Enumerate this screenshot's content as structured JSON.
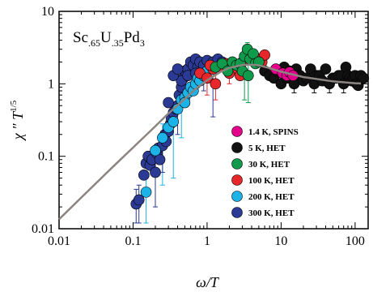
{
  "chart_data": {
    "type": "scatter",
    "xscale": "log",
    "yscale": "log",
    "xlim": [
      0.01,
      150
    ],
    "ylim": [
      0.01,
      10
    ],
    "xticks": [
      0.01,
      0.1,
      1,
      10,
      100
    ],
    "yticks": [
      0.01,
      0.1,
      1,
      10
    ],
    "xtick_labels": [
      "0.01",
      "0.1",
      "1",
      "10",
      "100"
    ],
    "ytick_labels": [
      "0.01",
      "0.1",
      "1",
      "10"
    ],
    "xlabel": "ω/T",
    "ylabel": "χ ″ T",
    "ylabel_exponent": "1/5",
    "annotation": {
      "parts": [
        {
          "text": "Sc",
          "sub": false
        },
        {
          "text": ".65",
          "sub": true
        },
        {
          "text": "U",
          "sub": false
        },
        {
          "text": ".35",
          "sub": true
        },
        {
          "text": "Pd",
          "sub": false
        },
        {
          "text": "3",
          "sub": true
        }
      ]
    },
    "legend_position": "lower-right",
    "series": [
      {
        "name": "1.4 K, SPINS",
        "color": "#e5008c",
        "points": [
          [
            8.5,
            1.6
          ],
          [
            10.5,
            1.4
          ],
          [
            12,
            1.3
          ],
          [
            13,
            1.45
          ],
          [
            14.5,
            1.3
          ]
        ]
      },
      {
        "name": "5 K, HET",
        "color": "#111111",
        "points": [
          [
            6,
            1.5
          ],
          [
            7,
            1.3
          ],
          [
            8,
            1.2
          ],
          [
            9,
            1.5
          ],
          [
            10,
            1.0
          ],
          [
            11,
            1.7
          ],
          [
            12,
            1.2
          ],
          [
            13,
            1.5
          ],
          [
            15,
            1.0
          ],
          [
            16,
            1.6
          ],
          [
            18,
            1.3
          ],
          [
            20,
            1.1
          ],
          [
            22,
            1.2
          ],
          [
            25,
            1.6
          ],
          [
            28,
            1.0
          ],
          [
            30,
            1.3
          ],
          [
            33,
            1.3
          ],
          [
            36,
            1.1
          ],
          [
            40,
            1.6
          ],
          [
            45,
            1.0
          ],
          [
            50,
            1.2
          ],
          [
            55,
            1.2
          ],
          [
            60,
            1.3
          ],
          [
            65,
            1.3
          ],
          [
            70,
            1.0
          ],
          [
            75,
            1.7
          ],
          [
            80,
            1.3
          ],
          [
            85,
            1.2
          ],
          [
            90,
            1.1
          ],
          [
            95,
            1.2
          ],
          [
            100,
            1.3
          ],
          [
            105,
            1.0
          ],
          [
            110,
            0.95
          ],
          [
            120,
            1.3
          ],
          [
            130,
            1.2
          ]
        ],
        "error_bars": [
          [
            15,
            1.0,
            0.75,
            1.25
          ],
          [
            28,
            1.0,
            0.75,
            1.25
          ],
          [
            45,
            1.0,
            0.75,
            1.25
          ],
          [
            70,
            1.0,
            0.75,
            1.25
          ]
        ]
      },
      {
        "name": "30 K, HET",
        "color": "#109a4b",
        "points": [
          [
            1.3,
            1.7
          ],
          [
            1.6,
            1.9
          ],
          [
            1.9,
            1.5
          ],
          [
            2.2,
            2.0
          ],
          [
            2.5,
            1.8
          ],
          [
            2.8,
            1.9
          ],
          [
            3.2,
            2.4
          ],
          [
            3.5,
            3.0
          ],
          [
            3.8,
            2.2
          ],
          [
            4.2,
            2.6
          ],
          [
            4.5,
            1.9
          ],
          [
            5,
            2.0
          ],
          [
            3.0,
            1.5
          ],
          [
            3.6,
            1.3
          ]
        ],
        "error_bars": [
          [
            3.2,
            1.2,
            0.6,
            1.8
          ],
          [
            3.6,
            1.3,
            0.55,
            2.0
          ],
          [
            3.5,
            3.0,
            2.4,
            3.7
          ]
        ]
      },
      {
        "name": "100 K, HET",
        "color": "#e8272b",
        "points": [
          [
            0.8,
            1.4
          ],
          [
            1.0,
            1.2
          ],
          [
            1.2,
            1.6
          ],
          [
            1.3,
            1.0
          ],
          [
            1.5,
            1.7
          ],
          [
            1.8,
            1.9
          ],
          [
            2.0,
            1.4
          ],
          [
            2.3,
            1.8
          ],
          [
            2.6,
            1.6
          ],
          [
            3.0,
            2.0
          ],
          [
            4.5,
            2.3
          ],
          [
            5.5,
            2.0
          ],
          [
            6,
            2.5
          ],
          [
            1.1,
            1.8
          ],
          [
            2.8,
            1.3
          ]
        ],
        "error_bars": [
          [
            1.0,
            1.2,
            0.7,
            1.7
          ],
          [
            1.3,
            1.0,
            0.6,
            1.5
          ],
          [
            2.0,
            1.4,
            1.0,
            1.9
          ]
        ]
      },
      {
        "name": "200 K, HET",
        "color": "#1cb3e8",
        "points": [
          [
            0.15,
            0.032
          ],
          [
            0.2,
            0.12
          ],
          [
            0.25,
            0.18
          ],
          [
            0.3,
            0.25
          ],
          [
            0.35,
            0.3
          ],
          [
            0.4,
            0.45
          ],
          [
            0.45,
            0.6
          ],
          [
            0.5,
            0.65
          ],
          [
            0.55,
            0.75
          ],
          [
            0.6,
            0.9
          ],
          [
            0.65,
            0.8
          ],
          [
            0.7,
            1.0
          ],
          [
            0.75,
            1.2
          ],
          [
            0.5,
            0.55
          ],
          [
            0.8,
            1.1
          ],
          [
            0.9,
            1.3
          ],
          [
            1.0,
            1.5
          ]
        ],
        "error_bars": [
          [
            0.15,
            0.032,
            0.012,
            0.05
          ],
          [
            0.25,
            0.18,
            0.04,
            0.28
          ],
          [
            0.35,
            0.3,
            0.05,
            0.45
          ],
          [
            0.45,
            0.6,
            0.18,
            0.8
          ]
        ]
      },
      {
        "name": "300 K, HET",
        "color": "#2b3a94",
        "points": [
          [
            0.11,
            0.022
          ],
          [
            0.12,
            0.025
          ],
          [
            0.14,
            0.055
          ],
          [
            0.15,
            0.08
          ],
          [
            0.16,
            0.1
          ],
          [
            0.17,
            0.075
          ],
          [
            0.18,
            0.09
          ],
          [
            0.2,
            0.06
          ],
          [
            0.21,
            0.11
          ],
          [
            0.22,
            0.13
          ],
          [
            0.23,
            0.09
          ],
          [
            0.25,
            0.14
          ],
          [
            0.27,
            0.2
          ],
          [
            0.28,
            0.16
          ],
          [
            0.3,
            0.22
          ],
          [
            0.32,
            0.28
          ],
          [
            0.33,
            0.33
          ],
          [
            0.35,
            0.4
          ],
          [
            0.38,
            0.45
          ],
          [
            0.4,
            0.5
          ],
          [
            0.42,
            0.7
          ],
          [
            0.45,
            0.9
          ],
          [
            0.48,
            1.2
          ],
          [
            0.5,
            1.5
          ],
          [
            0.55,
            1.6
          ],
          [
            0.6,
            2.0
          ],
          [
            0.65,
            1.8
          ],
          [
            0.7,
            2.2
          ],
          [
            0.75,
            1.7
          ],
          [
            0.8,
            2.0
          ],
          [
            0.9,
            1.8
          ],
          [
            1.0,
            2.1
          ],
          [
            1.1,
            1.7
          ],
          [
            1.2,
            2.0
          ],
          [
            1.4,
            2.2
          ],
          [
            1.6,
            2.0
          ],
          [
            1.8,
            1.8
          ],
          [
            0.45,
            1.1
          ],
          [
            0.35,
            1.3
          ],
          [
            0.3,
            0.55
          ],
          [
            0.4,
            1.6
          ],
          [
            0.55,
            1.3
          ],
          [
            0.7,
            1.4
          ]
        ],
        "error_bars": [
          [
            0.11,
            0.022,
            0.012,
            0.035
          ],
          [
            0.12,
            0.025,
            0.012,
            0.04
          ],
          [
            0.2,
            0.06,
            0.02,
            0.1
          ],
          [
            0.25,
            0.14,
            0.06,
            0.22
          ],
          [
            0.4,
            0.5,
            0.2,
            0.75
          ],
          [
            1.2,
            2.0,
            0.35,
            2.3
          ],
          [
            0.9,
            1.8,
            0.8,
            2.1
          ]
        ]
      }
    ],
    "fit_curve": {
      "color": "#8c8480",
      "points": [
        [
          0.01,
          0.0135
        ],
        [
          0.02,
          0.027
        ],
        [
          0.05,
          0.067
        ],
        [
          0.1,
          0.132
        ],
        [
          0.2,
          0.26
        ],
        [
          0.3,
          0.39
        ],
        [
          0.5,
          0.62
        ],
        [
          0.7,
          0.85
        ],
        [
          1.0,
          1.12
        ],
        [
          1.5,
          1.45
        ],
        [
          2.0,
          1.66
        ],
        [
          3.0,
          1.82
        ],
        [
          4.0,
          1.84
        ],
        [
          5.0,
          1.8
        ],
        [
          7.0,
          1.65
        ],
        [
          10.0,
          1.47
        ],
        [
          20.0,
          1.24
        ],
        [
          50.0,
          1.08
        ],
        [
          100.0,
          1.02
        ],
        [
          120.0,
          1.01
        ]
      ]
    }
  }
}
